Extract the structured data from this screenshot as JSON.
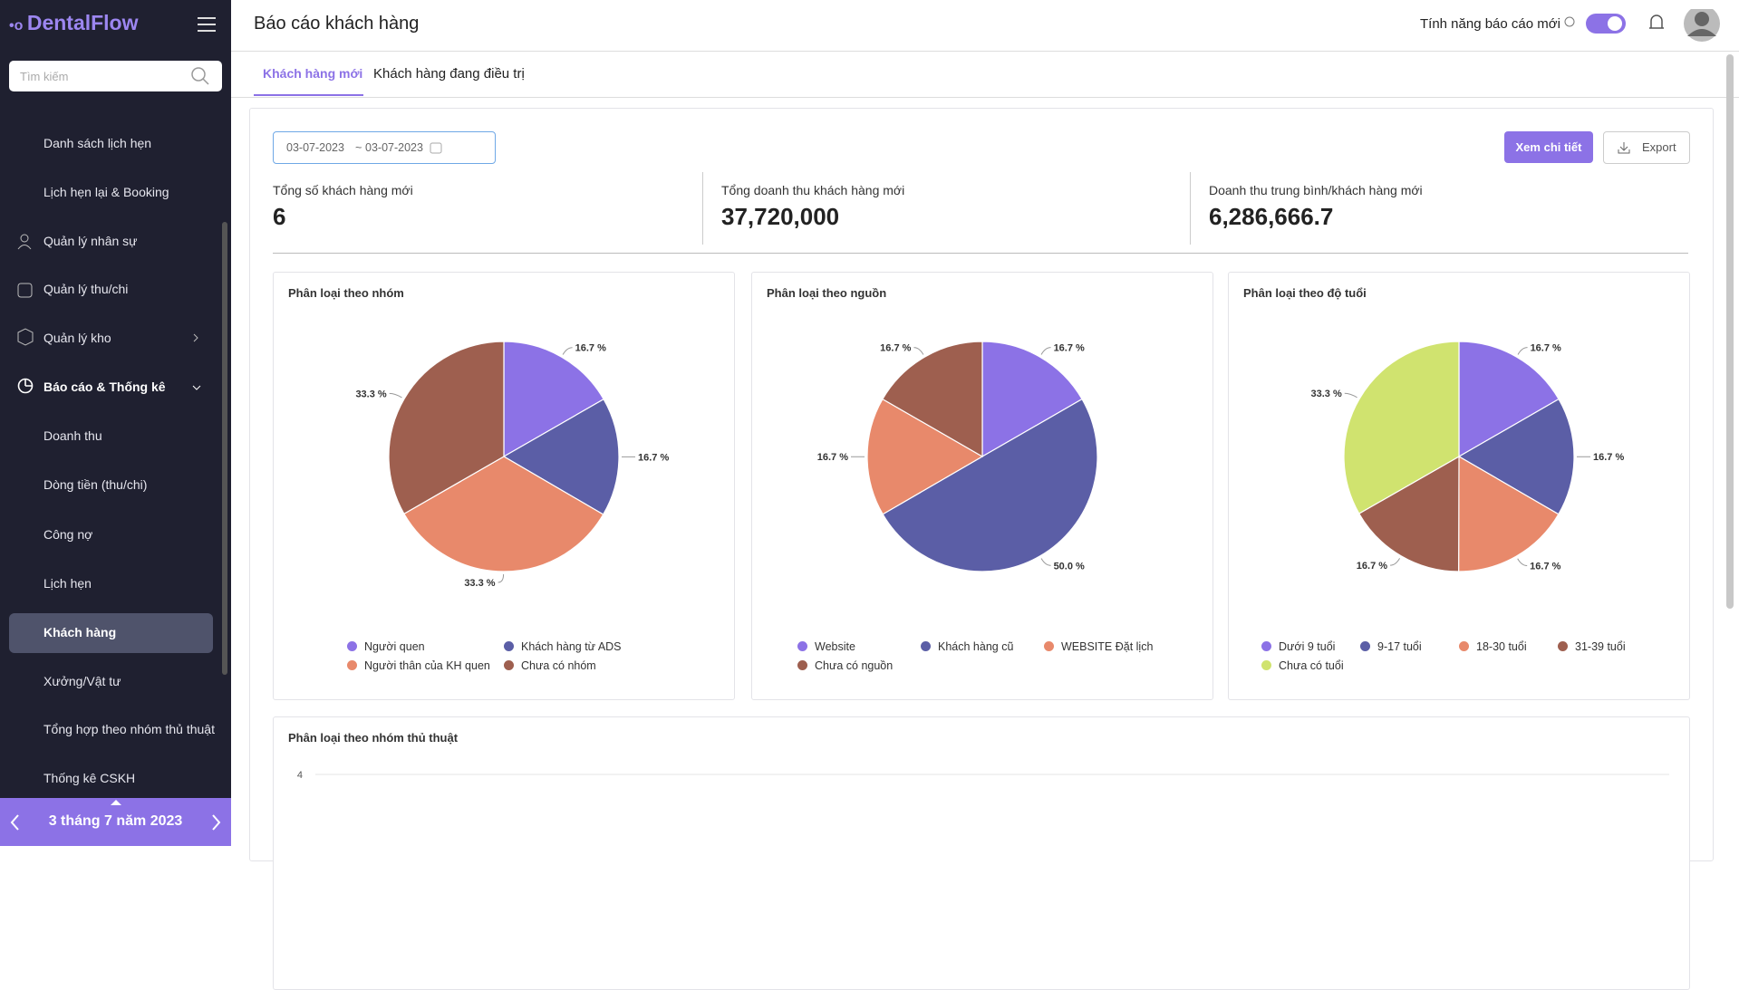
{
  "sidebar": {
    "brand": "DentalFlow",
    "search_placeholder": "Tìm kiếm",
    "menu": [
      "Danh sách lịch hẹn",
      "Lịch hẹn lại & Booking",
      "Quản lý nhân sự",
      "Quản lý thu/chi",
      "Quản lý kho",
      "Báo cáo & Thống kê",
      "Doanh thu",
      "Dòng tiền (thu/chi)",
      "Công nợ",
      "Lịch hẹn",
      "Khách hàng",
      "Xưởng/Vật tư",
      "Tổng hợp theo nhóm thủ thuật",
      "Thống kê CSKH"
    ],
    "date": "3 tháng 7 năm 2023"
  },
  "header": {
    "title": "Báo cáo khách hàng",
    "feature_toggle": "Tính năng báo cáo mới"
  },
  "tabs": [
    "Khách hàng mới",
    "Khách hàng đang điều trị"
  ],
  "filters": {
    "date_from": "03-07-2023",
    "separator": "~",
    "date_to": "03-07-2023",
    "detail_button": "Xem chi tiết",
    "export_button": "Export"
  },
  "stats": [
    {
      "label": "Tổng số khách hàng mới",
      "value": "6"
    },
    {
      "label": "Tổng doanh thu khách hàng mới",
      "value": "37,720,000"
    },
    {
      "label": "Doanh thu trung bình/khách hàng mới",
      "value": "6,286,666.7"
    }
  ],
  "chart_data": [
    {
      "type": "pie",
      "title": "Phân loại theo nhóm",
      "categories": [
        "Người quen",
        "Khách hàng từ ADS",
        "Người thân của KH quen",
        "Chưa có nhóm"
      ],
      "values": [
        16.7,
        16.7,
        33.3,
        33.3
      ],
      "value_labels": [
        "16.7 %",
        "16.7 %",
        "33.3 %",
        "33.3 %"
      ],
      "colors": [
        "#8c72e6",
        "#5b5ea6",
        "#e8896b",
        "#9e5f4f"
      ]
    },
    {
      "type": "pie",
      "title": "Phân loại theo nguồn",
      "categories": [
        "Website",
        "Khách hàng cũ",
        "WEBSITE Đặt lịch",
        "Chưa có nguồn"
      ],
      "values": [
        16.7,
        50.0,
        16.7,
        16.7
      ],
      "value_labels": [
        "16.7 %",
        "50.0 %",
        "16.7 %",
        "16.7 %"
      ],
      "colors": [
        "#8c72e6",
        "#5b5ea6",
        "#e8896b",
        "#9e5f4f"
      ]
    },
    {
      "type": "pie",
      "title": "Phân loại theo độ tuổi",
      "categories": [
        "Dưới 9 tuổi",
        "9-17 tuổi",
        "18-30 tuổi",
        "31-39 tuổi",
        "Chưa có tuổi"
      ],
      "values": [
        16.7,
        16.7,
        16.7,
        16.7,
        33.3
      ],
      "value_labels": [
        "16.7 %",
        "16.7 %",
        "16.7 %",
        "16.7 %",
        "33.3 %"
      ],
      "colors": [
        "#8c72e6",
        "#5b5ea6",
        "#e8896b",
        "#9e5f4f",
        "#d0e36f"
      ]
    },
    {
      "type": "bar",
      "title": "Phân loại theo nhóm thủ thuật",
      "ylim": [
        0,
        4
      ],
      "yticks": [
        4
      ],
      "grid": true
    }
  ]
}
